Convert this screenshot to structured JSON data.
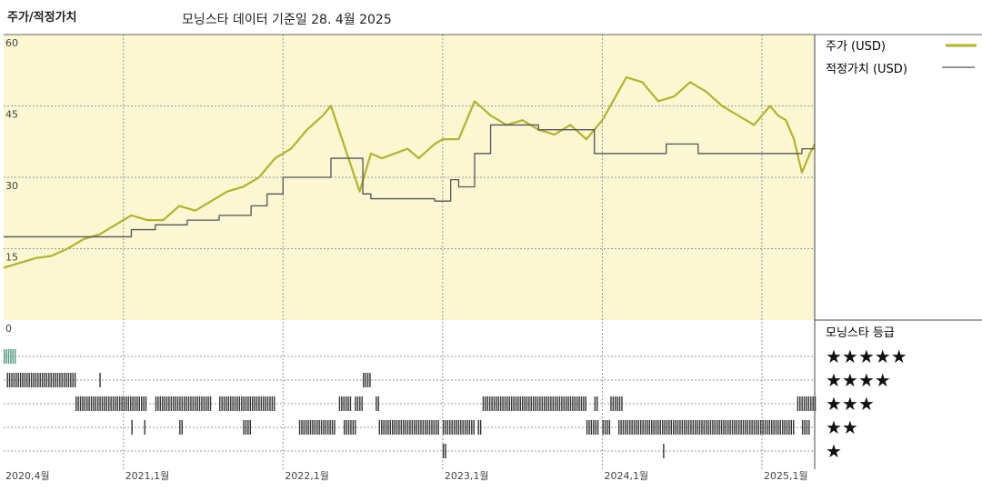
{
  "header": {
    "title_left": "주가/적정가치",
    "title_right": "모닝스타 데이터 기준일 28. 4월 2025"
  },
  "legend": {
    "price": "주가 (USD)",
    "fair_value": "적정가치 (USD)",
    "rating_title": "모닝스타 등급"
  },
  "colors": {
    "price": "#b3b42a",
    "fair_value": "#555555",
    "plot_bg": "#faf7d2",
    "band_dark": "#333333",
    "band_green": "#4f9a80"
  },
  "chart_data": {
    "type": "line",
    "title": "주가/적정가치",
    "ylim": [
      0,
      60
    ],
    "y_ticks": [
      "0",
      "15",
      "30",
      "45",
      "60"
    ],
    "x_ticks": [
      "2020,4월",
      "2021,1월",
      "2022,1월",
      "2023,1월",
      "2024,1월",
      "2025,1월"
    ],
    "x_tick_years": [
      2020.25,
      2021.0,
      2022.0,
      2023.0,
      2024.0,
      2025.0
    ],
    "xlim": [
      2020.25,
      2025.33
    ],
    "series": [
      {
        "name": "주가 (USD)",
        "x": [
          2020.25,
          2020.35,
          2020.45,
          2020.55,
          2020.65,
          2020.75,
          2020.85,
          2020.95,
          2021.05,
          2021.15,
          2021.25,
          2021.35,
          2021.45,
          2021.55,
          2021.65,
          2021.75,
          2021.85,
          2021.95,
          2022.05,
          2022.15,
          2022.25,
          2022.3,
          2022.4,
          2022.48,
          2022.55,
          2022.62,
          2022.7,
          2022.78,
          2022.85,
          2022.95,
          2023.0,
          2023.1,
          2023.2,
          2023.3,
          2023.4,
          2023.5,
          2023.6,
          2023.7,
          2023.8,
          2023.9,
          2024.0,
          2024.1,
          2024.15,
          2024.25,
          2024.35,
          2024.45,
          2024.55,
          2024.65,
          2024.75,
          2024.85,
          2024.95,
          2025.05,
          2025.1,
          2025.15,
          2025.2,
          2025.25,
          2025.3,
          2025.33
        ],
        "values": [
          11,
          12,
          13,
          13.5,
          15,
          17,
          18,
          20,
          22,
          21,
          21,
          24,
          23,
          25,
          27,
          28,
          30,
          34,
          36,
          40,
          43,
          45,
          35,
          27,
          35,
          34,
          35,
          36,
          34,
          37,
          38,
          38,
          46,
          43,
          41,
          42,
          40,
          39,
          41,
          38,
          42,
          48,
          51,
          50,
          46,
          47,
          50,
          48,
          45,
          43,
          41,
          45,
          43,
          42,
          38,
          31,
          35,
          37
        ]
      },
      {
        "name": "적정가치 (USD)",
        "x": [
          2020.25,
          2020.95,
          2021.05,
          2021.2,
          2021.4,
          2021.6,
          2021.8,
          2021.9,
          2022.0,
          2022.3,
          2022.5,
          2022.55,
          2022.95,
          2023.05,
          2023.1,
          2023.2,
          2023.3,
          2023.6,
          2023.75,
          2023.95,
          2024.0,
          2024.3,
          2024.4,
          2024.6,
          2025.2,
          2025.25,
          2025.33
        ],
        "values": [
          17.5,
          17.5,
          19,
          20,
          21,
          22,
          24,
          26.5,
          30,
          34,
          26.5,
          25.5,
          25,
          29.5,
          28,
          35,
          41,
          40,
          40,
          35,
          35,
          35,
          37,
          35,
          35,
          36,
          36
        ]
      }
    ],
    "star_rating": {
      "rows": [
        5,
        4,
        3,
        2,
        1
      ],
      "labels": [
        "★★★★★",
        "★★★★",
        "★★★",
        "★★",
        "★"
      ],
      "segments": [
        {
          "stars": 5,
          "from": 2020.25,
          "to": 2020.32
        },
        {
          "stars": 4,
          "from": 2020.27,
          "to": 2020.7
        },
        {
          "stars": 4,
          "from": 2020.85,
          "to": 2020.86
        },
        {
          "stars": 4,
          "from": 2022.5,
          "to": 2022.55
        },
        {
          "stars": 3,
          "from": 2020.7,
          "to": 2021.15
        },
        {
          "stars": 3,
          "from": 2021.2,
          "to": 2021.55
        },
        {
          "stars": 3,
          "from": 2021.6,
          "to": 2021.95
        },
        {
          "stars": 3,
          "from": 2022.35,
          "to": 2022.42
        },
        {
          "stars": 3,
          "from": 2022.45,
          "to": 2022.5
        },
        {
          "stars": 3,
          "from": 2022.58,
          "to": 2022.6
        },
        {
          "stars": 3,
          "from": 2023.25,
          "to": 2023.9
        },
        {
          "stars": 3,
          "from": 2023.95,
          "to": 2023.97
        },
        {
          "stars": 3,
          "from": 2024.05,
          "to": 2024.12
        },
        {
          "stars": 3,
          "from": 2025.22,
          "to": 2025.33
        },
        {
          "stars": 2,
          "from": 2021.05,
          "to": 2021.06
        },
        {
          "stars": 2,
          "from": 2021.13,
          "to": 2021.14
        },
        {
          "stars": 2,
          "from": 2021.35,
          "to": 2021.37
        },
        {
          "stars": 2,
          "from": 2021.75,
          "to": 2021.8
        },
        {
          "stars": 2,
          "from": 2022.1,
          "to": 2022.33
        },
        {
          "stars": 2,
          "from": 2022.38,
          "to": 2022.45
        },
        {
          "stars": 2,
          "from": 2022.6,
          "to": 2022.98
        },
        {
          "stars": 2,
          "from": 2023.0,
          "to": 2023.2
        },
        {
          "stars": 2,
          "from": 2023.22,
          "to": 2023.24
        },
        {
          "stars": 2,
          "from": 2023.9,
          "to": 2023.98
        },
        {
          "stars": 2,
          "from": 2024.0,
          "to": 2024.05
        },
        {
          "stars": 2,
          "from": 2024.1,
          "to": 2025.2
        },
        {
          "stars": 2,
          "from": 2025.25,
          "to": 2025.3
        },
        {
          "stars": 1,
          "from": 2023.0,
          "to": 2023.02
        },
        {
          "stars": 1,
          "from": 2024.38,
          "to": 2024.39
        }
      ]
    }
  }
}
